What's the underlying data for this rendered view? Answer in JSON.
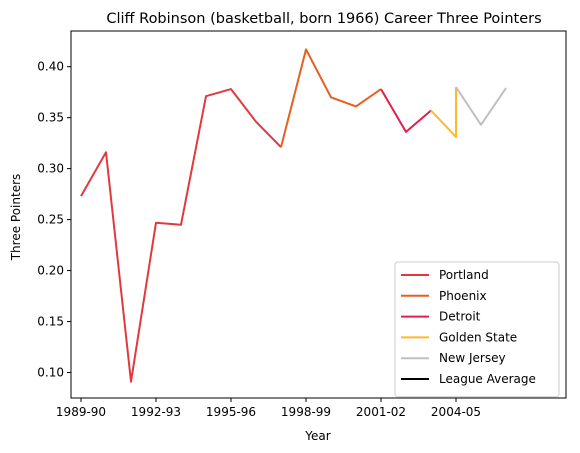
{
  "chart_data": {
    "type": "line",
    "title": "Cliff Robinson (basketball, born 1966) Career Three Pointers",
    "xlabel": "Year",
    "ylabel": "Three Pointers",
    "xlim": [
      1988.6,
      2008.4
    ],
    "ylim": [
      0.075,
      0.435
    ],
    "x_ticks": [
      {
        "x": 1989,
        "label": "1989-90"
      },
      {
        "x": 1992,
        "label": "1992-93"
      },
      {
        "x": 1995,
        "label": "1995-96"
      },
      {
        "x": 1998,
        "label": "1998-99"
      },
      {
        "x": 2001,
        "label": "2001-02"
      },
      {
        "x": 2004,
        "label": "2004-05"
      }
    ],
    "y_ticks": [
      {
        "y": 0.1,
        "label": "0.10"
      },
      {
        "y": 0.15,
        "label": "0.15"
      },
      {
        "y": 0.2,
        "label": "0.20"
      },
      {
        "y": 0.25,
        "label": "0.25"
      },
      {
        "y": 0.3,
        "label": "0.30"
      },
      {
        "y": 0.35,
        "label": "0.35"
      },
      {
        "y": 0.4,
        "label": "0.40"
      }
    ],
    "grid": false,
    "legend_position": "bottom-right",
    "series": [
      {
        "name": "Portland",
        "color": "#e03a3e",
        "points": [
          [
            1989,
            0.273
          ],
          [
            1990,
            0.316
          ],
          [
            1991,
            0.091
          ],
          [
            1992,
            0.247
          ],
          [
            1993,
            0.245
          ],
          [
            1994,
            0.371
          ],
          [
            1995,
            0.378
          ],
          [
            1996,
            0.346
          ],
          [
            1997,
            0.321
          ]
        ]
      },
      {
        "name": "Phoenix",
        "color": "#e56020",
        "points": [
          [
            1997,
            0.321
          ],
          [
            1998,
            0.417
          ],
          [
            1999,
            0.37
          ],
          [
            2000,
            0.361
          ],
          [
            2001,
            0.378
          ]
        ]
      },
      {
        "name": "Detroit",
        "color": "#e0204a",
        "points": [
          [
            2001,
            0.378
          ],
          [
            2002,
            0.336
          ],
          [
            2003,
            0.357
          ]
        ]
      },
      {
        "name": "Golden State",
        "color": "#fdb927",
        "points": [
          [
            2003,
            0.357
          ],
          [
            2004,
            0.331
          ],
          [
            2004,
            0.38
          ]
        ]
      },
      {
        "name": "New Jersey",
        "color": "#c0c0c0",
        "points": [
          [
            2004,
            0.38
          ],
          [
            2005,
            0.343
          ],
          [
            2006,
            0.379
          ]
        ]
      },
      {
        "name": "League Average",
        "color": "#000000",
        "points": []
      }
    ]
  }
}
